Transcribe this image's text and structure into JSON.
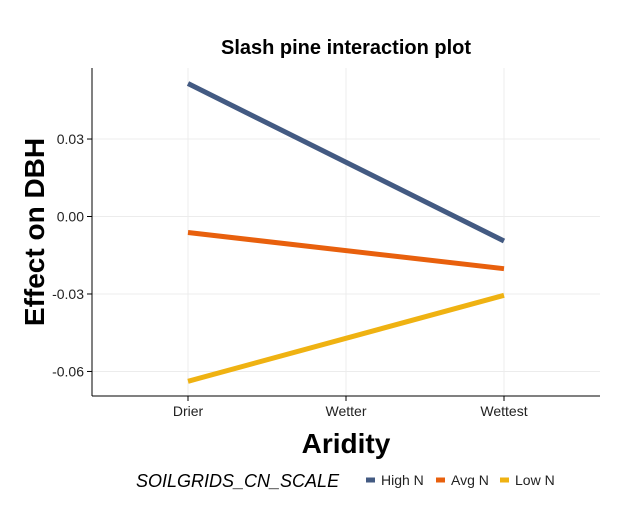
{
  "chart_data": {
    "type": "line",
    "title": "Slash pine interaction plot",
    "xlabel": "Aridity",
    "ylabel": "Effect on DBH",
    "categories": [
      "Drier",
      "Wetter",
      "Wettest"
    ],
    "yticks": [
      0.03,
      0.0,
      -0.03,
      -0.06
    ],
    "ytick_labels": [
      "0.03",
      "0.00",
      "-0.03",
      "-0.06"
    ],
    "ylim": [
      -0.0695,
      0.0575
    ],
    "grid": true,
    "legend": {
      "title": "SOILGRIDS_CN_SCALE",
      "position": "bottom"
    },
    "series": [
      {
        "name": "High N",
        "color": "#435a82",
        "x": [
          "Drier",
          "Wettest"
        ],
        "values": [
          0.0515,
          -0.0095
        ]
      },
      {
        "name": "Avg N",
        "color": "#e8600d",
        "x": [
          "Drier",
          "Wettest"
        ],
        "values": [
          -0.0062,
          -0.0202
        ]
      },
      {
        "name": "Low N",
        "color": "#efb212",
        "x": [
          "Drier",
          "Wettest"
        ],
        "values": [
          -0.0638,
          -0.0305
        ]
      }
    ]
  }
}
